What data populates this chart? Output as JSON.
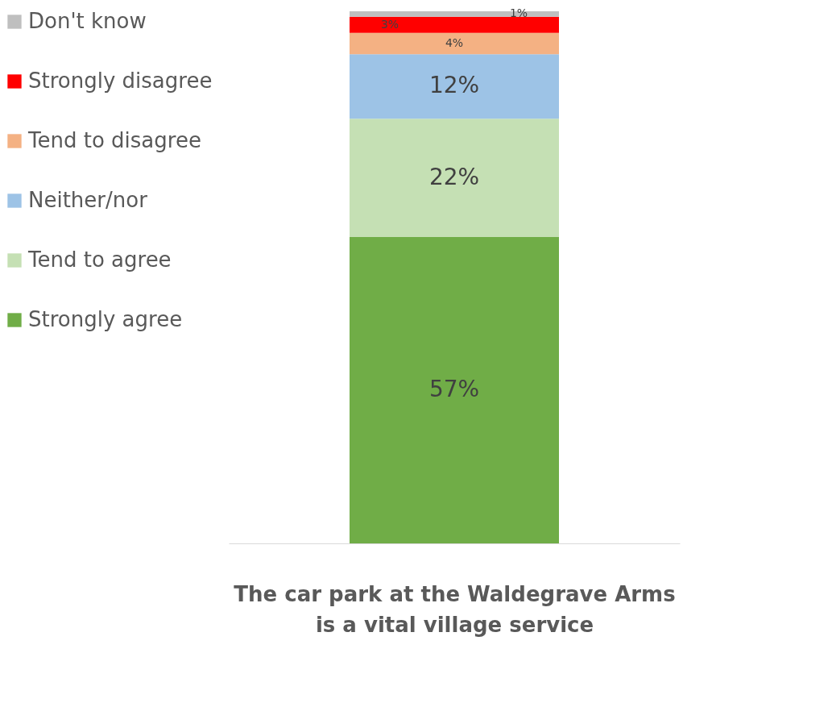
{
  "chart_data": {
    "type": "bar",
    "stacked": true,
    "legend": "left",
    "xlabel": "The car park at the Waldegrave Arms is a vital village service",
    "categories": [
      null
    ],
    "series": [
      {
        "name": "Strongly agree",
        "color": "#70ad47",
        "values": [
          57
        ],
        "value_labels": [
          "57%"
        ]
      },
      {
        "name": "Tend to agree",
        "color": "#c5e0b4",
        "values": [
          22
        ],
        "value_labels": [
          "22%"
        ]
      },
      {
        "name": "Neither/nor",
        "color": "#9dc3e6",
        "values": [
          12
        ],
        "value_labels": [
          "12%"
        ]
      },
      {
        "name": "Tend to disagree",
        "color": "#f4b183",
        "values": [
          4
        ],
        "value_labels": [
          "4%"
        ]
      },
      {
        "name": "Strongly disagree",
        "color": "#ff0000",
        "values": [
          3
        ],
        "value_labels": [
          "3%"
        ]
      },
      {
        "name": "Don't know",
        "color": "#bfbfbf",
        "values": [
          1
        ],
        "value_labels": [
          "1%"
        ]
      }
    ]
  }
}
